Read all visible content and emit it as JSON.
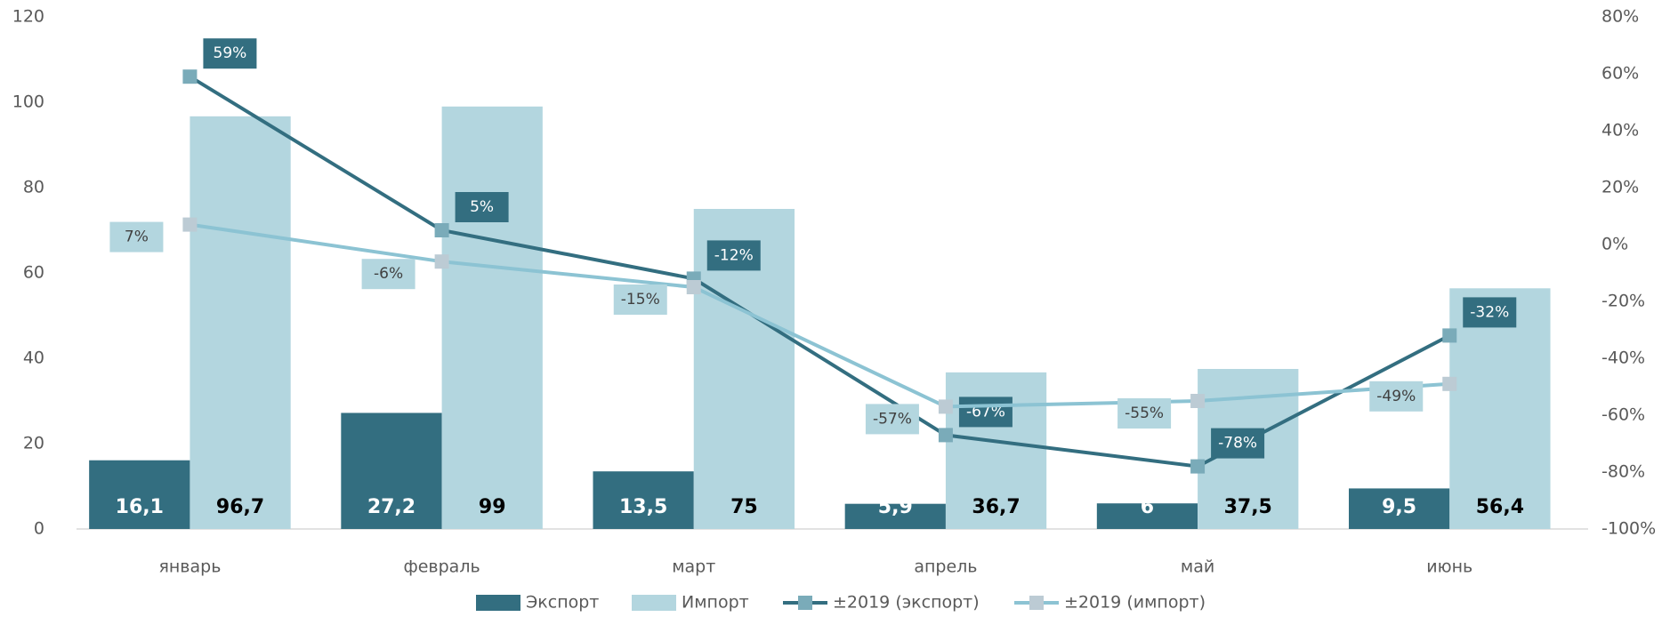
{
  "chart_data": {
    "type": "bar_line",
    "categories": [
      "январь",
      "февраль",
      "март",
      "апрель",
      "май",
      "июнь"
    ],
    "series": [
      {
        "name": "Экспорт",
        "type": "bar",
        "color": "#336e80",
        "values": [
          16.1,
          27.2,
          13.5,
          5.9,
          6,
          9.5
        ],
        "value_labels": [
          "16,1",
          "27,2",
          "13,5",
          "5,9",
          "6",
          "9,5"
        ]
      },
      {
        "name": "Импорт",
        "type": "bar",
        "color": "#b3d6df",
        "values": [
          96.7,
          99,
          75,
          36.7,
          37.5,
          56.4
        ],
        "value_labels": [
          "96,7",
          "99",
          "75",
          "36,7",
          "37,5",
          "56,4"
        ]
      },
      {
        "name": "±2019 (экспорт)",
        "type": "line",
        "axis": "y2",
        "color": "#336e80",
        "marker_color": "#7aabb9",
        "values": [
          59,
          5,
          -12,
          -67,
          -78,
          -32
        ],
        "value_labels": [
          "59%",
          "5%",
          "-12%",
          "-67%",
          "-78%",
          "-32%"
        ]
      },
      {
        "name": "±2019 (импорт)",
        "type": "line",
        "axis": "y2",
        "color": "#8cc3d3",
        "marker_color": "#bccbd4",
        "values": [
          7,
          -6,
          -15,
          -57,
          -55,
          -49
        ],
        "value_labels": [
          "7%",
          "-6%",
          "-15%",
          "-57%",
          "-55%",
          "-49%"
        ]
      }
    ],
    "ylim": [
      0,
      120
    ],
    "yticks": [
      0,
      20,
      40,
      60,
      80,
      100,
      120
    ],
    "y2lim": [
      -100,
      80
    ],
    "y2ticks": [
      {
        "value": -100,
        "label": "-100%"
      },
      {
        "value": -80,
        "label": "-80%"
      },
      {
        "value": -60,
        "label": "-60%"
      },
      {
        "value": -40,
        "label": "-40%"
      },
      {
        "value": -20,
        "label": "-20%"
      },
      {
        "value": 0,
        "label": "0%"
      },
      {
        "value": 20,
        "label": "20%"
      },
      {
        "value": 40,
        "label": "40%"
      },
      {
        "value": 60,
        "label": "60%"
      },
      {
        "value": 80,
        "label": "80%"
      }
    ],
    "legend": "bottom"
  }
}
